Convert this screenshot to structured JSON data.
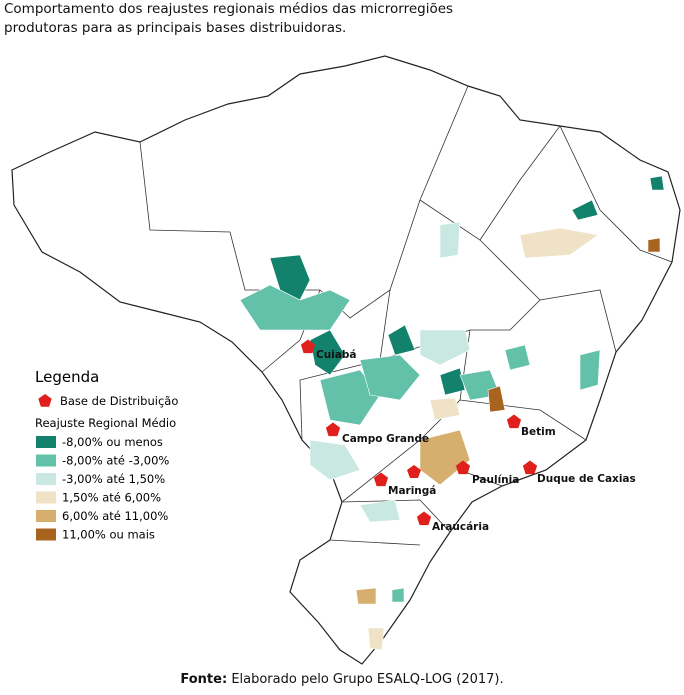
{
  "title": "Comportamento dos reajustes regionais médios das microrregiões produtoras para as principais bases distribuidoras.",
  "legend": {
    "title": "Legenda",
    "base_label": "Base de Distribuição",
    "scale_title": "Reajuste Regional Médio",
    "classes": [
      {
        "label": "-8,00% ou menos",
        "color": "#13826c"
      },
      {
        "label": "-8,00% até -3,00%",
        "color": "#63c1aa"
      },
      {
        "label": "-3,00% até 1,50%",
        "color": "#c9e8e1"
      },
      {
        "label": "1,50% até 6,00%",
        "color": "#efe2c6"
      },
      {
        "label": "6,00% até 11,00%",
        "color": "#d6ae6e"
      },
      {
        "label": "11,00% ou mais",
        "color": "#a8641f"
      }
    ]
  },
  "cities": [
    "Cuiabá",
    "Campo Grande",
    "Betim",
    "Maringá",
    "Paulínia",
    "Duque de Caxias",
    "Araucária"
  ],
  "source": {
    "prefix": "Fonte:",
    "text": "Elaborado pelo Grupo ESALQ-LOG (2017)."
  }
}
